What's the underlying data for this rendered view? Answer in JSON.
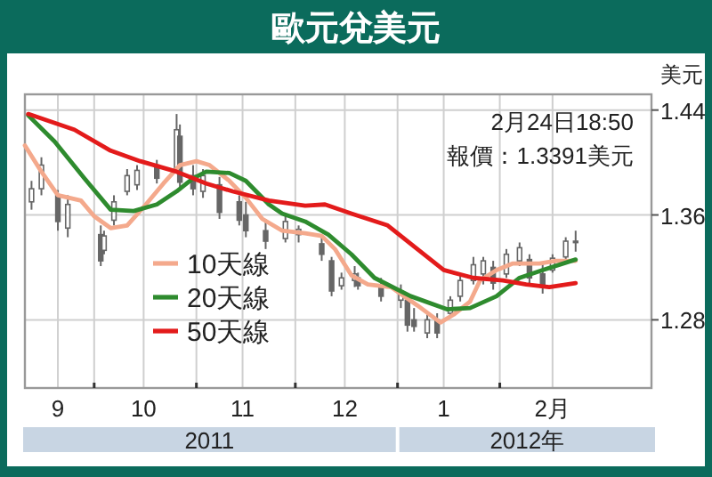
{
  "chart_data": {
    "type": "candlestick",
    "title": "歐元兌美元",
    "ylabel": "美元",
    "annotations": [
      "2月24日18:50",
      "報價：1.3391美元",
      "2011",
      "2012年"
    ],
    "color": "#666666",
    "x": [
      "2011-09-12",
      "2011-09-15",
      "2011-09-20",
      "2011-09-23",
      "2011-10-03",
      "2011-10-04",
      "2011-10-07",
      "2011-10-11",
      "2011-10-14",
      "2011-10-20",
      "2011-10-26",
      "2011-10-27",
      "2011-10-31",
      "2011-11-03",
      "2011-11-08",
      "2011-11-14",
      "2011-11-16",
      "2011-11-22",
      "2011-11-28",
      "2011-12-02",
      "2011-12-09",
      "2011-12-12",
      "2011-12-15",
      "2011-12-19",
      "2011-12-20",
      "2011-12-27",
      "2012-01-02",
      "2012-01-04",
      "2012-01-06",
      "2012-01-10",
      "2012-01-13",
      "2012-01-17",
      "2012-01-20",
      "2012-01-24",
      "2012-01-27",
      "2012-01-30",
      "2012-02-03",
      "2012-02-07",
      "2012-02-10",
      "2012-02-14",
      "2012-02-17",
      "2012-02-21",
      "2012-02-24"
    ],
    "ohlc": [
      [
        1.37,
        1.386,
        1.364,
        1.38
      ],
      [
        1.38,
        1.404,
        1.375,
        1.398
      ],
      [
        1.375,
        1.379,
        1.348,
        1.355
      ],
      [
        1.35,
        1.375,
        1.343,
        1.368
      ],
      [
        1.345,
        1.352,
        1.321,
        1.325
      ],
      [
        1.333,
        1.348,
        1.33,
        1.344
      ],
      [
        1.356,
        1.375,
        1.352,
        1.37
      ],
      [
        1.378,
        1.395,
        1.375,
        1.39
      ],
      [
        1.383,
        1.398,
        1.379,
        1.394
      ],
      [
        1.398,
        1.402,
        1.384,
        1.388
      ],
      [
        1.395,
        1.437,
        1.393,
        1.425
      ],
      [
        1.42,
        1.429,
        1.379,
        1.385
      ],
      [
        1.39,
        1.398,
        1.375,
        1.38
      ],
      [
        1.378,
        1.395,
        1.373,
        1.39
      ],
      [
        1.383,
        1.389,
        1.357,
        1.362
      ],
      [
        1.37,
        1.375,
        1.352,
        1.356
      ],
      [
        1.36,
        1.37,
        1.343,
        1.348
      ],
      [
        1.348,
        1.357,
        1.334,
        1.34
      ],
      [
        1.342,
        1.359,
        1.339,
        1.355
      ],
      [
        1.345,
        1.352,
        1.339,
        1.349
      ],
      [
        1.338,
        1.343,
        1.325,
        1.33
      ],
      [
        1.325,
        1.328,
        1.298,
        1.302
      ],
      [
        1.306,
        1.316,
        1.303,
        1.312
      ],
      [
        1.31,
        1.321,
        1.305,
        1.315
      ],
      [
        1.312,
        1.316,
        1.303,
        1.306
      ],
      [
        1.305,
        1.312,
        1.294,
        1.298
      ],
      [
        1.295,
        1.307,
        1.289,
        1.302
      ],
      [
        1.295,
        1.298,
        1.271,
        1.276
      ],
      [
        1.28,
        1.289,
        1.271,
        1.275
      ],
      [
        1.27,
        1.285,
        1.266,
        1.28
      ],
      [
        1.28,
        1.285,
        1.266,
        1.27
      ],
      [
        1.285,
        1.298,
        1.282,
        1.295
      ],
      [
        1.298,
        1.314,
        1.294,
        1.31
      ],
      [
        1.31,
        1.328,
        1.307,
        1.322
      ],
      [
        1.315,
        1.328,
        1.307,
        1.325
      ],
      [
        1.32,
        1.325,
        1.303,
        1.308
      ],
      [
        1.315,
        1.334,
        1.312,
        1.33
      ],
      [
        1.325,
        1.339,
        1.321,
        1.335
      ],
      [
        1.326,
        1.33,
        1.307,
        1.312
      ],
      [
        1.315,
        1.323,
        1.3,
        1.305
      ],
      [
        1.318,
        1.33,
        1.316,
        1.327
      ],
      [
        1.328,
        1.343,
        1.325,
        1.34
      ],
      [
        1.34,
        1.348,
        1.332,
        1.339
      ]
    ],
    "series": [
      {
        "name": "10天線",
        "type": "line",
        "color": "#f4a98c",
        "x": [
          "2011-09-10",
          "2011-09-15",
          "2011-09-20",
          "2011-09-27",
          "2011-10-01",
          "2011-10-06",
          "2011-10-11",
          "2011-10-16",
          "2011-10-22",
          "2011-10-27",
          "2011-11-01",
          "2011-11-05",
          "2011-11-11",
          "2011-11-16",
          "2011-11-21",
          "2011-11-27",
          "2011-12-04",
          "2011-12-09",
          "2011-12-13",
          "2011-12-18",
          "2011-12-23",
          "2011-12-30",
          "2012-01-07",
          "2012-01-14",
          "2012-01-18",
          "2012-01-23",
          "2012-01-26",
          "2012-01-31",
          "2012-02-05",
          "2012-02-13",
          "2012-02-18",
          "2012-02-24"
        ],
        "values": [
          1.413,
          1.393,
          1.375,
          1.371,
          1.359,
          1.35,
          1.352,
          1.366,
          1.384,
          1.398,
          1.401,
          1.398,
          1.386,
          1.373,
          1.357,
          1.348,
          1.346,
          1.344,
          1.334,
          1.314,
          1.307,
          1.305,
          1.291,
          1.278,
          1.284,
          1.294,
          1.31,
          1.318,
          1.323,
          1.323,
          1.325,
          1.325
        ]
      },
      {
        "name": "20天線",
        "type": "line",
        "color": "#2e8b2e",
        "x": [
          "2011-09-11",
          "2011-09-19",
          "2011-09-28",
          "2011-10-06",
          "2011-10-13",
          "2011-10-20",
          "2011-10-26",
          "2011-10-31",
          "2011-11-04",
          "2011-11-11",
          "2011-11-16",
          "2011-11-23",
          "2011-11-27",
          "2011-12-04",
          "2011-12-11",
          "2011-12-18",
          "2011-12-25",
          "2012-01-05",
          "2012-01-16",
          "2012-01-23",
          "2012-01-31",
          "2012-02-07",
          "2012-02-14",
          "2012-02-24"
        ],
        "values": [
          1.436,
          1.416,
          1.388,
          1.364,
          1.363,
          1.368,
          1.378,
          1.388,
          1.393,
          1.392,
          1.386,
          1.368,
          1.361,
          1.355,
          1.345,
          1.33,
          1.312,
          1.298,
          1.288,
          1.289,
          1.298,
          1.312,
          1.318,
          1.326
        ]
      },
      {
        "name": "50天線",
        "type": "line",
        "color": "#e31b1b",
        "x": [
          "2011-09-11",
          "2011-09-25",
          "2011-10-06",
          "2011-10-15",
          "2011-10-26",
          "2011-11-04",
          "2011-11-12",
          "2011-11-23",
          "2011-12-04",
          "2011-12-10",
          "2011-12-18",
          "2011-12-29",
          "2012-01-07",
          "2012-01-15",
          "2012-01-24",
          "2012-02-02",
          "2012-02-09",
          "2012-02-16",
          "2012-02-24"
        ],
        "values": [
          1.437,
          1.425,
          1.409,
          1.401,
          1.393,
          1.384,
          1.378,
          1.371,
          1.367,
          1.368,
          1.361,
          1.352,
          1.334,
          1.318,
          1.312,
          1.31,
          1.307,
          1.305,
          1.308
        ]
      }
    ],
    "xlim": [
      "2011-09-10",
      "2012-03-18"
    ],
    "xticks": [
      {
        "value": "2011-09-20",
        "label": "9"
      },
      {
        "value": "2011-10-01",
        "label": null
      },
      {
        "value": "2011-10-16",
        "label": "10"
      },
      {
        "value": "2011-11-01",
        "label": null
      },
      {
        "value": "2011-11-15",
        "label": "11"
      },
      {
        "value": "2011-12-01",
        "label": null
      },
      {
        "value": "2011-12-16",
        "label": "12"
      },
      {
        "value": "2012-01-01",
        "label": null
      },
      {
        "value": "2012-01-15",
        "label": "1"
      },
      {
        "value": "2012-02-01",
        "label": null
      },
      {
        "value": "2012-02-17",
        "label": "2月"
      }
    ],
    "ylim": [
      1.228,
      1.452
    ],
    "yticks": [
      1.28,
      1.36,
      1.44
    ],
    "grid": true,
    "legend": "bottom left"
  }
}
